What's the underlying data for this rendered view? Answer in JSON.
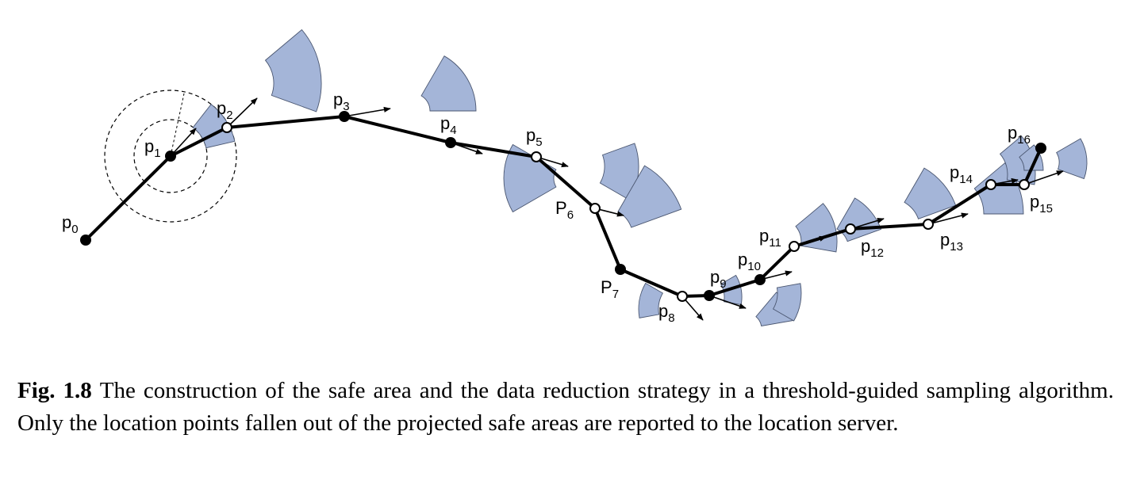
{
  "points": [
    {
      "id": "p0",
      "base": "p",
      "sub": "0",
      "filled": true
    },
    {
      "id": "p1",
      "base": "p",
      "sub": "1",
      "filled": true
    },
    {
      "id": "p2",
      "base": "p",
      "sub": "2",
      "filled": false
    },
    {
      "id": "p3",
      "base": "p",
      "sub": "3",
      "filled": true
    },
    {
      "id": "p4",
      "base": "p",
      "sub": "4",
      "filled": true
    },
    {
      "id": "p5",
      "base": "p",
      "sub": "5",
      "filled": false
    },
    {
      "id": "p6",
      "base": "P",
      "sub": "6",
      "filled": false
    },
    {
      "id": "p7",
      "base": "P",
      "sub": "7",
      "filled": true
    },
    {
      "id": "p8",
      "base": "p",
      "sub": "8",
      "filled": false
    },
    {
      "id": "p9",
      "base": "p",
      "sub": "9",
      "filled": true
    },
    {
      "id": "p10",
      "base": "p",
      "sub": "10",
      "filled": true
    },
    {
      "id": "p11",
      "base": "p",
      "sub": "11",
      "filled": false
    },
    {
      "id": "p12",
      "base": "p",
      "sub": "12",
      "filled": false
    },
    {
      "id": "p13",
      "base": "p",
      "sub": "13",
      "filled": false
    },
    {
      "id": "p14",
      "base": "p",
      "sub": "14",
      "filled": false
    },
    {
      "id": "p15",
      "base": "p",
      "sub": "15",
      "filled": false
    },
    {
      "id": "p16",
      "base": "p",
      "sub": "16",
      "filled": true
    }
  ],
  "colors": {
    "safe_area_fill": "#a4b5d8",
    "safe_area_stroke": "#4a5670",
    "path": "#000000"
  },
  "caption": {
    "label": "Fig. 1.8",
    "text": "The construction of the safe area and the data reduction strategy in a threshold-guided sampling algorithm. Only the location points fallen out of the projected safe areas are reported to the location server."
  }
}
